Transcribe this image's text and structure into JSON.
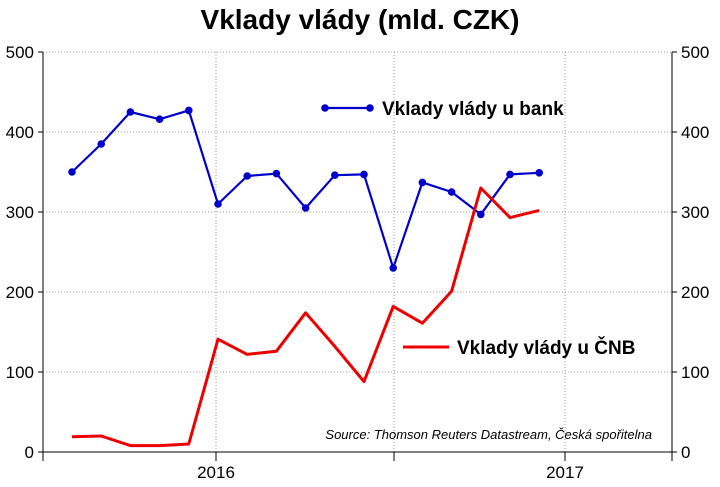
{
  "chart_data": {
    "type": "line",
    "title": "Vklady vlády (mld. CZK)",
    "ylim": [
      0,
      500
    ],
    "y_ticks": [
      0,
      100,
      200,
      300,
      400,
      500
    ],
    "x_tick_labels": [
      "2016",
      "2017"
    ],
    "grid": true,
    "source": "Source: Thomson Reuters Datastream, Česká spořitelna",
    "x": [
      "2015-07",
      "2015-08",
      "2015-09",
      "2015-10",
      "2015-11",
      "2015-12",
      "2016-01",
      "2016-02",
      "2016-03",
      "2016-04",
      "2016-05",
      "2016-06",
      "2016-07",
      "2016-08",
      "2016-09",
      "2016-10",
      "2016-11",
      "2016-12"
    ],
    "series": [
      {
        "name": "Vklady vlády u bank",
        "color": "#0000cc",
        "marker": true,
        "values": [
          350,
          385,
          425,
          416,
          427,
          310,
          345,
          348,
          305,
          346,
          347,
          230,
          337,
          325,
          297,
          347,
          349,
          null
        ]
      },
      {
        "name": "Vklady vlády u ČNB",
        "color": "#ee0000",
        "marker": false,
        "values": [
          19,
          20,
          8,
          8,
          10,
          141,
          122,
          126,
          174,
          132,
          88,
          182,
          161,
          201,
          330,
          293,
          302,
          null
        ]
      }
    ]
  }
}
